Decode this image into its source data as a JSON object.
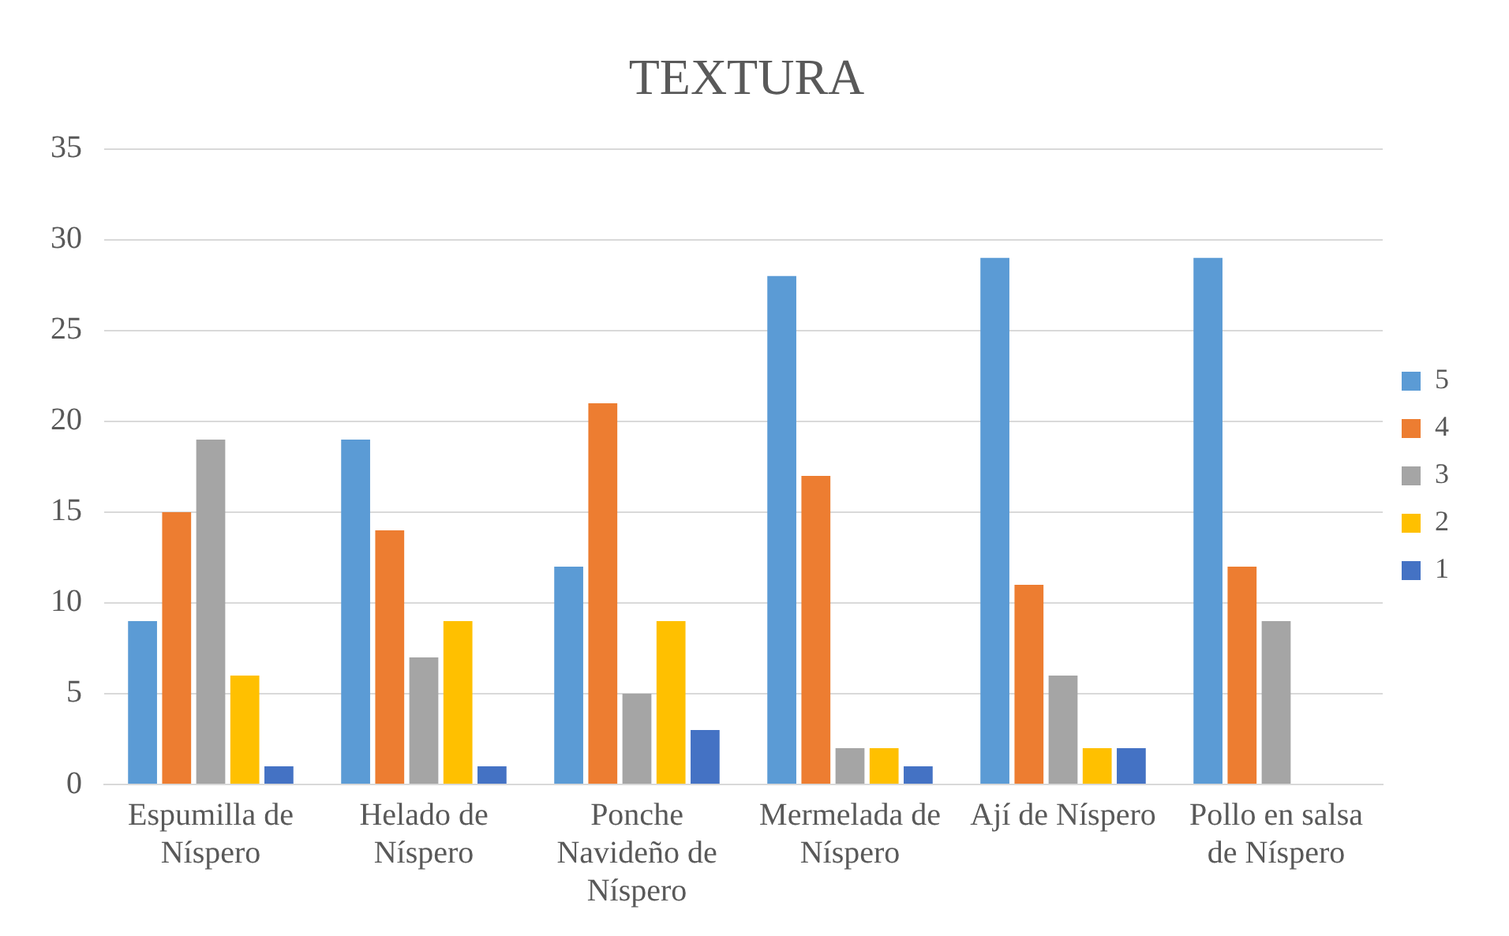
{
  "chart_data": {
    "type": "bar",
    "title": "TEXTURA",
    "categories": [
      "Espumilla de Níspero",
      "Helado de Níspero",
      "Ponche Navideño de Níspero",
      "Mermelada de Níspero",
      "Ají de Níspero",
      "Pollo en salsa de Níspero"
    ],
    "series": [
      {
        "name": "5",
        "color": "#5b9bd5",
        "values": [
          9,
          19,
          12,
          28,
          29,
          29
        ]
      },
      {
        "name": "4",
        "color": "#ed7d31",
        "values": [
          15,
          14,
          21,
          17,
          11,
          12
        ]
      },
      {
        "name": "3",
        "color": "#a5a5a5",
        "values": [
          19,
          7,
          5,
          2,
          6,
          9
        ]
      },
      {
        "name": "2",
        "color": "#ffc000",
        "values": [
          6,
          9,
          9,
          2,
          2,
          0
        ]
      },
      {
        "name": "1",
        "color": "#4472c4",
        "values": [
          1,
          1,
          3,
          1,
          2,
          0
        ]
      }
    ],
    "ylim": [
      0,
      35
    ],
    "yticks": [
      0,
      5,
      10,
      15,
      20,
      25,
      30,
      35
    ],
    "grid": "y",
    "legend": "right"
  }
}
